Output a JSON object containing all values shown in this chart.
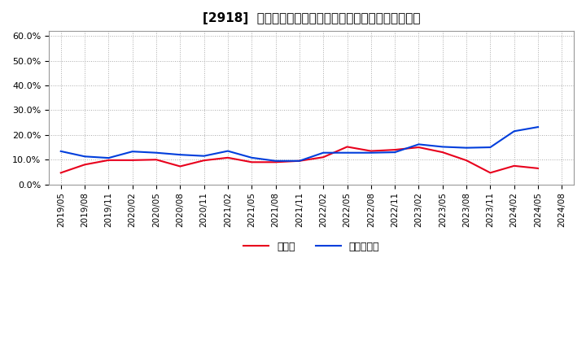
{
  "title": "[2918]  現預金、有利子負債の総資産に対する比率の推移",
  "x_labels": [
    "2019/05",
    "2019/08",
    "2019/11",
    "2020/02",
    "2020/05",
    "2020/08",
    "2020/11",
    "2021/02",
    "2021/05",
    "2021/08",
    "2021/11",
    "2022/02",
    "2022/05",
    "2022/08",
    "2022/11",
    "2023/02",
    "2023/05",
    "2023/08",
    "2023/11",
    "2024/02",
    "2024/05",
    "2024/08"
  ],
  "cash": [
    0.047,
    0.08,
    0.098,
    0.098,
    0.1,
    0.073,
    0.097,
    0.108,
    0.09,
    0.09,
    0.095,
    0.11,
    0.152,
    0.135,
    0.14,
    0.15,
    0.13,
    0.097,
    0.047,
    0.075,
    0.065,
    null
  ],
  "debt": [
    0.134,
    0.113,
    0.107,
    0.133,
    0.128,
    0.12,
    0.115,
    0.135,
    0.108,
    0.095,
    0.095,
    0.128,
    0.128,
    0.128,
    0.13,
    0.162,
    0.152,
    0.148,
    0.15,
    0.215,
    0.232,
    null
  ],
  "cash_color": "#e8001c",
  "debt_color": "#003edc",
  "ylim": [
    0.0,
    0.62
  ],
  "yticks": [
    0.0,
    0.1,
    0.2,
    0.3,
    0.4,
    0.5,
    0.6
  ],
  "ytick_labels": [
    "0.0%",
    "10.0%",
    "20.0%",
    "30.0%",
    "40.0%",
    "50.0%",
    "60.0%"
  ],
  "legend_cash": "現預金",
  "legend_debt": "有利子負債",
  "bg_color": "#ffffff",
  "plot_bg_color": "#ffffff",
  "grid_color": "#aaaaaa",
  "title_fontsize": 11,
  "tick_fontsize": 7.5,
  "legend_fontsize": 9
}
